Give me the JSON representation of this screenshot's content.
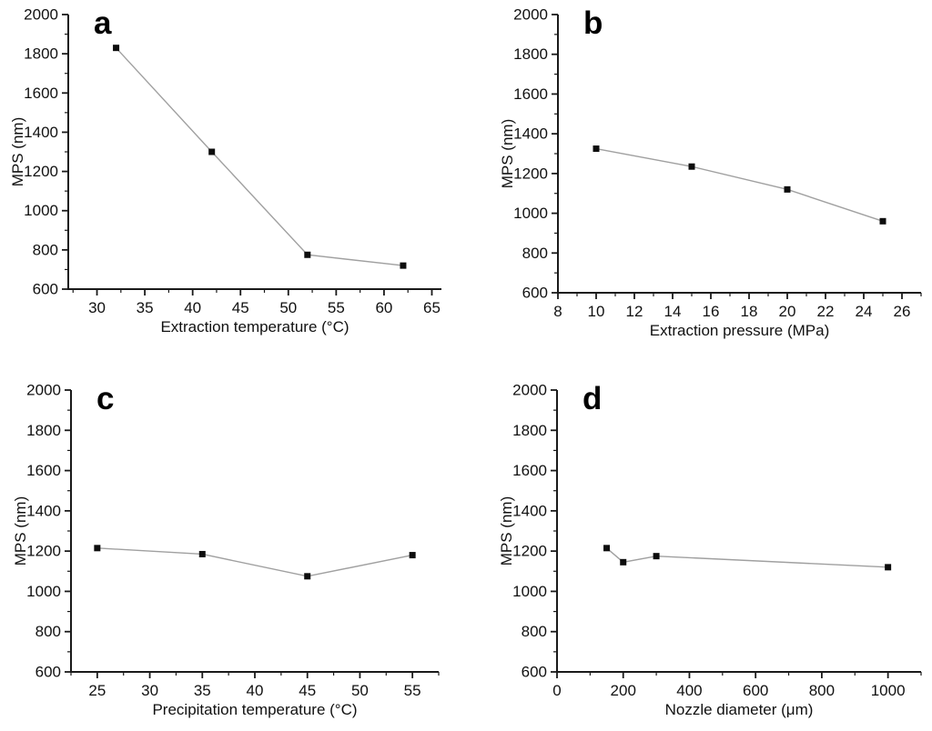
{
  "figure": {
    "background": "#ffffff",
    "axis_color": "#1a1a1a",
    "marker_color": "#0d0d0d",
    "line_color": "#a0a0a0",
    "text_color": "#111111"
  },
  "chart_data": [
    {
      "panel_label": "a",
      "type": "line",
      "title": "",
      "xlabel": "Extraction temperature (°C)",
      "ylabel": "MPS (nm)",
      "x": [
        32,
        42,
        52,
        62
      ],
      "y": [
        1830,
        1300,
        775,
        720
      ],
      "xlim": [
        27,
        66
      ],
      "xticks": [
        30,
        35,
        40,
        45,
        50,
        55,
        60,
        65
      ],
      "xminor_step": 2.5,
      "ylim": [
        600,
        2000
      ],
      "yticks": [
        600,
        800,
        1000,
        1200,
        1400,
        1600,
        1800,
        2000
      ],
      "yminor_step": 100,
      "grid": false,
      "legend": null
    },
    {
      "panel_label": "b",
      "type": "line",
      "title": "",
      "xlabel": "Extraction pressure (MPa)",
      "ylabel": "MPS (nm)",
      "x": [
        10,
        15,
        20,
        25
      ],
      "y": [
        1325,
        1235,
        1120,
        960
      ],
      "xlim": [
        8,
        27
      ],
      "xticks": [
        8,
        10,
        12,
        14,
        16,
        18,
        20,
        22,
        24,
        26
      ],
      "xminor_step": 1,
      "ylim": [
        600,
        2000
      ],
      "yticks": [
        600,
        800,
        1000,
        1200,
        1400,
        1600,
        1800,
        2000
      ],
      "yminor_step": 100,
      "grid": false,
      "legend": null
    },
    {
      "panel_label": "c",
      "type": "line",
      "title": "",
      "xlabel": "Precipitation temperature (°C)",
      "ylabel": "MPS (nm)",
      "x": [
        25,
        35,
        45,
        55
      ],
      "y": [
        1215,
        1185,
        1075,
        1180
      ],
      "xlim": [
        22.5,
        57.5
      ],
      "xticks": [
        25,
        30,
        35,
        40,
        45,
        50,
        55
      ],
      "xminor_step": 2.5,
      "ylim": [
        600,
        2000
      ],
      "yticks": [
        600,
        800,
        1000,
        1200,
        1400,
        1600,
        1800,
        2000
      ],
      "yminor_step": 100,
      "grid": false,
      "legend": null
    },
    {
      "panel_label": "d",
      "type": "line",
      "title": "",
      "xlabel": "Nozzle diameter (μm)",
      "ylabel": "MPS (nm)",
      "x": [
        150,
        200,
        300,
        1000
      ],
      "y": [
        1215,
        1145,
        1175,
        1120
      ],
      "xlim": [
        0,
        1100
      ],
      "xticks": [
        0,
        200,
        400,
        600,
        800,
        1000
      ],
      "xminor_step": 100,
      "ylim": [
        600,
        2000
      ],
      "yticks": [
        600,
        800,
        1000,
        1200,
        1400,
        1600,
        1800,
        2000
      ],
      "yminor_step": 100,
      "grid": false,
      "legend": null
    }
  ]
}
